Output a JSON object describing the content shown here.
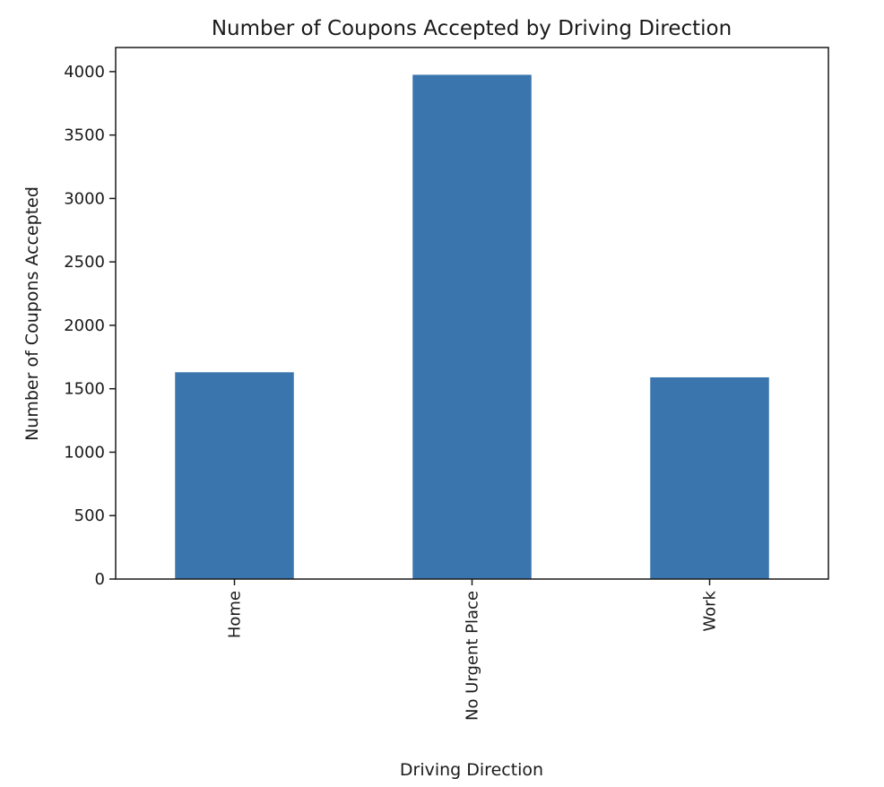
{
  "chart_data": {
    "type": "bar",
    "title": "Number of Coupons Accepted by Driving Direction",
    "xlabel": "Driving Direction",
    "ylabel": "Number of Coupons Accepted",
    "categories": [
      "Home",
      "No Urgent Place",
      "Work"
    ],
    "values": [
      1630,
      3975,
      1590
    ],
    "ylim": [
      0,
      4190
    ],
    "yticks": [
      0,
      500,
      1000,
      1500,
      2000,
      2500,
      3000,
      3500,
      4000
    ],
    "bar_color": "#3a76ad",
    "grid": false,
    "legend": "none"
  }
}
